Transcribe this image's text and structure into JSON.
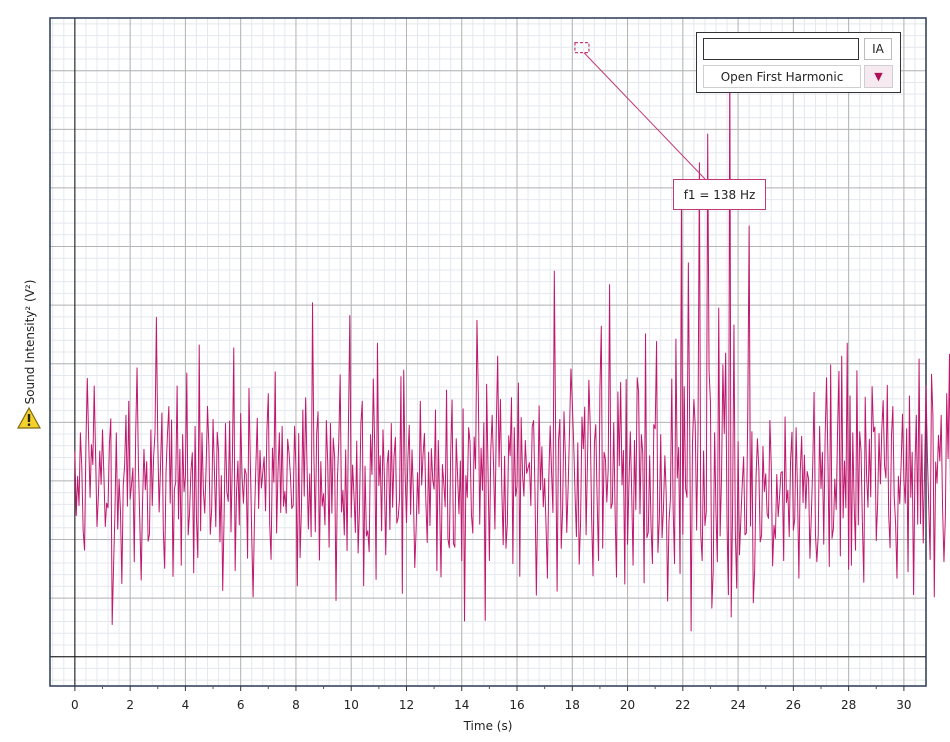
{
  "chart_data": {
    "type": "line",
    "xlabel": "Time (s)",
    "ylabel": "Sound Intensity² (V²)",
    "xlim": [
      -0.9,
      30.8
    ],
    "ylim": [
      -0.5,
      10.9
    ],
    "x_ticks": [
      0,
      2,
      4,
      6,
      8,
      10,
      12,
      14,
      16,
      18,
      20,
      22,
      24,
      26,
      28,
      30
    ],
    "y_tick_labels_shown": false,
    "grid": true,
    "legend": "top-right",
    "series": [
      {
        "color": "#c0186e",
        "x_start": 0.0,
        "x_step": 0.05,
        "values": [
          3.52,
          2.41,
          3.08,
          2.58,
          3.82,
          3.24,
          2.15,
          1.82,
          3.62,
          4.75,
          3.67,
          2.72,
          3.62,
          3.28,
          4.62,
          3.43,
          2.22,
          2.73,
          3.51,
          2.94,
          3.87,
          3.11,
          2.22,
          2.62,
          2.54,
          3.63,
          4.06,
          0.55,
          1.54,
          2.45,
          3.82,
          2.18,
          3.03,
          2.48,
          1.25,
          2.92,
          3.26,
          4.12,
          2.57,
          4.36,
          2.69,
          2.93,
          3.22,
          1.62,
          3.79,
          4.93,
          3.25,
          2.28,
          1.31,
          2.65,
          3.54,
          2.85,
          3.33,
          1.97,
          2.09,
          3.87,
          2.58,
          3.41,
          3.82,
          5.79,
          3.68,
          2.47,
          3.26,
          4.16,
          2.16,
          1.51,
          3.17,
          3.79,
          4.27,
          2.62,
          4.04,
          1.37,
          2.85,
          2.98,
          4.62,
          2.35,
          3.54,
          1.56,
          3.79,
          2.82,
          3.08,
          4.84,
          2.08,
          2.45,
          3.17,
          3.48,
          1.43,
          3.93,
          2.36,
          1.69,
          5.32,
          2.15,
          3.82,
          2.84,
          2.45,
          3.25,
          4.27,
          3.59,
          2.09,
          2.52,
          4.05,
          3.18,
          2.22,
          3.83,
          3.51,
          1.96,
          3.09,
          1.13,
          2.38,
          3.98,
          2.81,
          2.65,
          4.02,
          2.13,
          3.36,
          5.27,
          1.47,
          2.82,
          3.34,
          2.25,
          4.15,
          3.08,
          2.62,
          3.21,
          3.12,
          1.68,
          4.58,
          3.29,
          2.07,
          1.02,
          2.38,
          3.25,
          4.07,
          2.53,
          3.52,
          2.88,
          3.14,
          3.41,
          2.49,
          3.87,
          4.49,
          2.27,
          1.66,
          3.56,
          2.98,
          4.86,
          2.11,
          3.15,
          3.82,
          2.46,
          3.93,
          2.57,
          2.82,
          2.45,
          3.71,
          3.48,
          3.09,
          2.53,
          2.58,
          3.93,
          3.23,
          1.21,
          3.81,
          1.69,
          2.55,
          4.21,
          2.74,
          4.42,
          3.27,
          2.18,
          3.12,
          2.05,
          6.04,
          3.43,
          2.13,
          3.82,
          4.18,
          1.65,
          3.33,
          2.57,
          2.78,
          2.25,
          4.03,
          3.31,
          1.87,
          3.98,
          2.45,
          3.73,
          3.41,
          0.96,
          3.01,
          3.68,
          4.81,
          2.47,
          2.84,
          2.08,
          3.53,
          1.81,
          3.95,
          5.82,
          2.38,
          3.27,
          2.76,
          2.12,
          3.68,
          1.77,
          2.54,
          3.98,
          4.36,
          1.21,
          3.25,
          2.06,
          2.15,
          1.79,
          3.79,
          3.11,
          4.74,
          3.58,
          1.32,
          5.35,
          2.92,
          3.43,
          2.15,
          3.87,
          3.08,
          1.74,
          3.29,
          3.52,
          2.17,
          3.98,
          2.55,
          3.42,
          3.74,
          2.28,
          2.37,
          2.71,
          4.78,
          1.08,
          4.89,
          3.13,
          2.29,
          3.37,
          3.95,
          2.43,
          3.53,
          2.79,
          1.52,
          2.19,
          3.14,
          2.44,
          4.36,
          2.93,
          3.45,
          3.81,
          2.68,
          1.95,
          3.49,
          2.24,
          3.55,
          3.02,
          2.86,
          4.21,
          1.47,
          3.69,
          2.62,
          1.36,
          3.28,
          2.96,
          2.56,
          4.55,
          2.01,
          1.86,
          3.48,
          4.38,
          1.93,
          1.87,
          3.72,
          3.08,
          2.44,
          3.34,
          1.64,
          4.23,
          0.61,
          3.09,
          2.72,
          3.91,
          3.66,
          2.43,
          2.11,
          3.75,
          3.21,
          5.74,
          4.48,
          2.26,
          3.56,
          2.84,
          3.99,
          0.62,
          4.65,
          3.22,
          1.64,
          3.51,
          4.12,
          3.28,
          2.18,
          3.92,
          5.13,
          3.24,
          4.39,
          2.85,
          1.91,
          3.42,
          1.85,
          2.27,
          3.77,
          3.43,
          4.42,
          1.59,
          3.91,
          2.74,
          2.91,
          4.67,
          1.37,
          4.08,
          3.11,
          2.74,
          3.69,
          3.13,
          3.22,
          3.31,
          2.58,
          3.93,
          4.03,
          2.82,
          1.05,
          2.68,
          4.28,
          2.85,
          3.58,
          2.56,
          3.04,
          2.24,
          1.34,
          3.05,
          3.94,
          3.16,
          2.46,
          6.58,
          3.62,
          1.12,
          3.68,
          4.05,
          1.85,
          2.51,
          4.18,
          3.43,
          2.12,
          2.89,
          3.84,
          4.91,
          4.34,
          3.65,
          2.78,
          2.05,
          3.65,
          1.58,
          2.28,
          4.09,
          3.55,
          4.26,
          2.08,
          3.34,
          4.72,
          3.93,
          2.37,
          1.38,
          3.64,
          3.96,
          2.66,
          1.64,
          4.56,
          5.64,
          1.85,
          3.49,
          3.37,
          2.64,
          3.21,
          6.35,
          2.53,
          2.62,
          3.99,
          2.45,
          1.36,
          4.52,
          3.26,
          4.68,
          2.93,
          3.52,
          1.24,
          4.73,
          1.92,
          2.93,
          3.84,
          2.79,
          1.56,
          3.69,
          2.51,
          4.76,
          4.52,
          2.44,
          3.79,
          3.48,
          1.26,
          5.51,
          2.03,
          2.12,
          3.43,
          2.23,
          1.59,
          3.96,
          3.89,
          5.38,
          1.78,
          2.35,
          3.79,
          2.03,
          2.54,
          3.43,
          2.76,
          0.95,
          2.31,
          2.68,
          4.74,
          2.52,
          1.59,
          5.42,
          3.05,
          3.57,
          1.42,
          7.83,
          2.09,
          4.61,
          2.87,
          2.72,
          6.72,
          3.84,
          0.44,
          3.65,
          4.39,
          3.94,
          2.16,
          3.86,
          8.43,
          2.08,
          1.64,
          3.51,
          2.24,
          2.48,
          8.92,
          4.87,
          4.35,
          0.83,
          1.46,
          3.82,
          2.46,
          1.62,
          5.95,
          2.06,
          3.05,
          4.98,
          3.81,
          5.18,
          2.26,
          1.06,
          10.36,
          0.68,
          2.47,
          5.66,
          2.13,
          1.17,
          3.67,
          1.74,
          2.35,
          2.94,
          3.41,
          2.08,
          2.11,
          4.18,
          7.35,
          2.23,
          3.84,
          0.92,
          1.48,
          3.07,
          3.72,
          3.21,
          1.96,
          2.07,
          3.59,
          2.82,
          3.12,
          2.44,
          2.36,
          4.03,
          3.26,
          1.55,
          2.24,
          2.02,
          3.11,
          2.39,
          2.73,
          3.14,
          3.16,
          1.64,
          4.09,
          2.63,
          2.84,
          2.05,
          3.36,
          3.83,
          2.16,
          2.35,
          3.91,
          2.82,
          1.34,
          3.17,
          3.76,
          2.63,
          3.44,
          2.53,
          3.16,
          3.04,
          1.68,
          2.41,
          3.23,
          4.51,
          2.09,
          1.62,
          2.08,
          3.93,
          2.87,
          3.49,
          1.92,
          3.76,
          4.76,
          3.42,
          1.54,
          4.98,
          2.02,
          2.19,
          3.03,
          2.51,
          3.86,
          4.87,
          1.72,
          5.13,
          2.37,
          3.34,
          2.54,
          5.35,
          1.49,
          4.45,
          1.56,
          3.82,
          2.61,
          1.82,
          4.88,
          2.25,
          3.84,
          3.51,
          2.24,
          1.27,
          4.43,
          3.09,
          2.55,
          3.71,
          2.73,
          4.61,
          3.84,
          3.92,
          1.98,
          2.62,
          3.81,
          2.95,
          3.87,
          4.37,
          3.26,
          3.05,
          4.63,
          2.42,
          1.86,
          3.76,
          4.27,
          2.73,
          2.27,
          1.34,
          3.08,
          2.61,
          3.29,
          4.14,
          3.03,
          2.62,
          3.89,
          1.45,
          4.45,
          2.72,
          3.49,
          1.06,
          3.22,
          4.12,
          2.26,
          5.08,
          2.27,
          3.79,
          1.94,
          3.21,
          4.62,
          3.44,
          2.56,
          1.66,
          4.82,
          4.12,
          1.02,
          3.32,
          2.96,
          3.78,
          3.34,
          4.12,
          2.53,
          1.62,
          2.38,
          4.49,
          3.38,
          5.16,
          1.85,
          4.31,
          2.71,
          1.23,
          4.62,
          3.16,
          2.42,
          4.88,
          3.58,
          1.76,
          4.51,
          1.54,
          3.67,
          5.28,
          3.24,
          3.97,
          2.56,
          2.81,
          5.14,
          2.26,
          1.54,
          3.88,
          4.57,
          3.54,
          2.18,
          5.19,
          0.71,
          4.85,
          2.53,
          3.32,
          1.58,
          4.58,
          6.76,
          2.36,
          4.25,
          2.96,
          3.31,
          4.57,
          1.62,
          1.83,
          3.86,
          4.69,
          2.28,
          0.63,
          3.58,
          3.37,
          4.36,
          2.65,
          3.18,
          4.52,
          2.45,
          1.45,
          3.52,
          4.68,
          2.51,
          3.15,
          3.26,
          1.95,
          3.57,
          2.51,
          4.91,
          0.95
        ]
      }
    ],
    "annotation": {
      "label": "f1 = 138 Hz",
      "x": 18.35,
      "y": 10.36
    }
  },
  "legend": {
    "input_value": "",
    "ia_label": "IA",
    "selection_label": "Open First Harmonic"
  },
  "colors": {
    "series": "#c0186e",
    "annotation": "#c03a7a",
    "grid_major": "#b4b4b4",
    "grid_minor": "#e4e8ef",
    "frame": "#2b3954"
  },
  "icons": {
    "warning": "warning-icon",
    "dropdown": "chevron-down-icon"
  }
}
